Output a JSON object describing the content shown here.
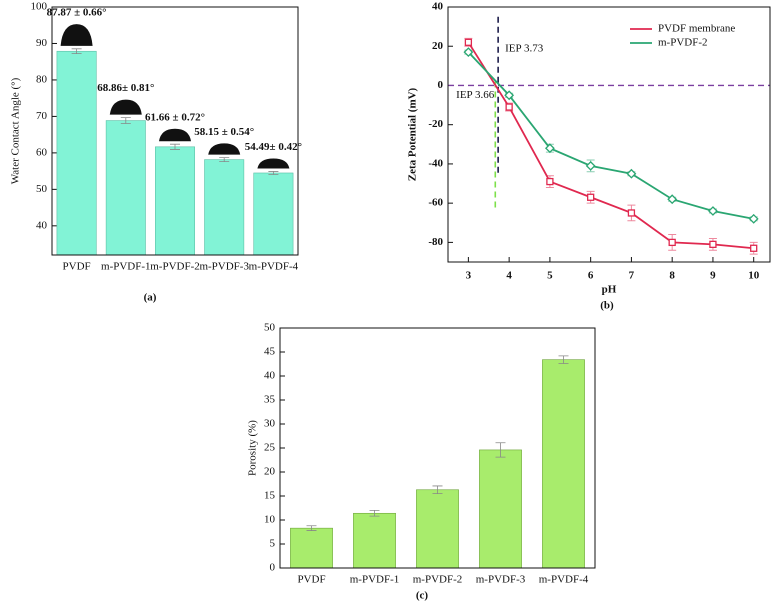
{
  "chart_data": [
    {
      "type": "bar",
      "label": "(a)",
      "ylabel": "Water Contact Angle (°)",
      "categories": [
        "PVDF",
        "m-PVDF-1",
        "m-PVDF-2",
        "m-PVDF-3",
        "m-PVDF-4"
      ],
      "values": [
        87.87,
        68.86,
        61.66,
        58.15,
        54.49
      ],
      "errors": [
        0.66,
        0.81,
        0.72,
        0.54,
        0.42
      ],
      "value_labels": [
        "87.87 ± 0.66°",
        "68.86± 0.81°",
        "61.66 ± 0.72°",
        "58.15 ± 0.54°",
        "54.49± 0.42°"
      ],
      "color": "#82f3d6",
      "ylim": [
        32,
        100
      ],
      "yticks": [
        40,
        50,
        60,
        70,
        80,
        90,
        100
      ]
    },
    {
      "type": "line",
      "label": "(b)",
      "xlabel": "pH",
      "ylabel": "Zeta Potential (mV)",
      "x": [
        3,
        4,
        5,
        6,
        7,
        8,
        9,
        10
      ],
      "series": [
        {
          "name": "PVDF membrane",
          "color": "#e0284f",
          "marker": "square",
          "values": [
            22,
            -11,
            -49,
            -57,
            -65,
            -80,
            -81,
            -83
          ],
          "errors": [
            2,
            2,
            3,
            3,
            4,
            4,
            3,
            3
          ]
        },
        {
          "name": "m-PVDF-2",
          "color": "#2aa672",
          "marker": "diamond",
          "values": [
            17,
            -5,
            -32,
            -41,
            -45,
            -58,
            -64,
            -68
          ],
          "errors": [
            1,
            1,
            2,
            3,
            1,
            1,
            1,
            1
          ]
        }
      ],
      "hline": 0,
      "hline_color": "#7b3fa0",
      "annotations": [
        {
          "text": "IEP 3.73",
          "x": 3.73,
          "y": [
            -45,
            35
          ],
          "color": "#1c1c4a",
          "side": "right"
        },
        {
          "text": "IEP 3.66",
          "x": 3.66,
          "y": [
            -64,
            2
          ],
          "color": "#7de04a",
          "side": "left"
        }
      ],
      "legend": "upper right",
      "xlim": [
        2.5,
        10.4
      ],
      "xticks": [
        3,
        4,
        5,
        6,
        7,
        8,
        9,
        10
      ],
      "ylim": [
        -90,
        40
      ],
      "yticks": [
        -80,
        -60,
        -40,
        -20,
        0,
        20,
        40
      ]
    },
    {
      "type": "bar",
      "label": "(c)",
      "ylabel": "Porosity (%)",
      "categories": [
        "PVDF",
        "m-PVDF-1",
        "m-PVDF-2",
        "m-PVDF-3",
        "m-PVDF-4"
      ],
      "values": [
        8.3,
        11.4,
        16.3,
        24.6,
        43.4
      ],
      "errors": [
        0.5,
        0.6,
        0.8,
        1.5,
        0.8
      ],
      "color": "#a8ec6c",
      "ylim": [
        0,
        50
      ],
      "yticks": [
        0,
        5,
        10,
        15,
        20,
        25,
        30,
        35,
        40,
        45,
        50
      ]
    }
  ]
}
